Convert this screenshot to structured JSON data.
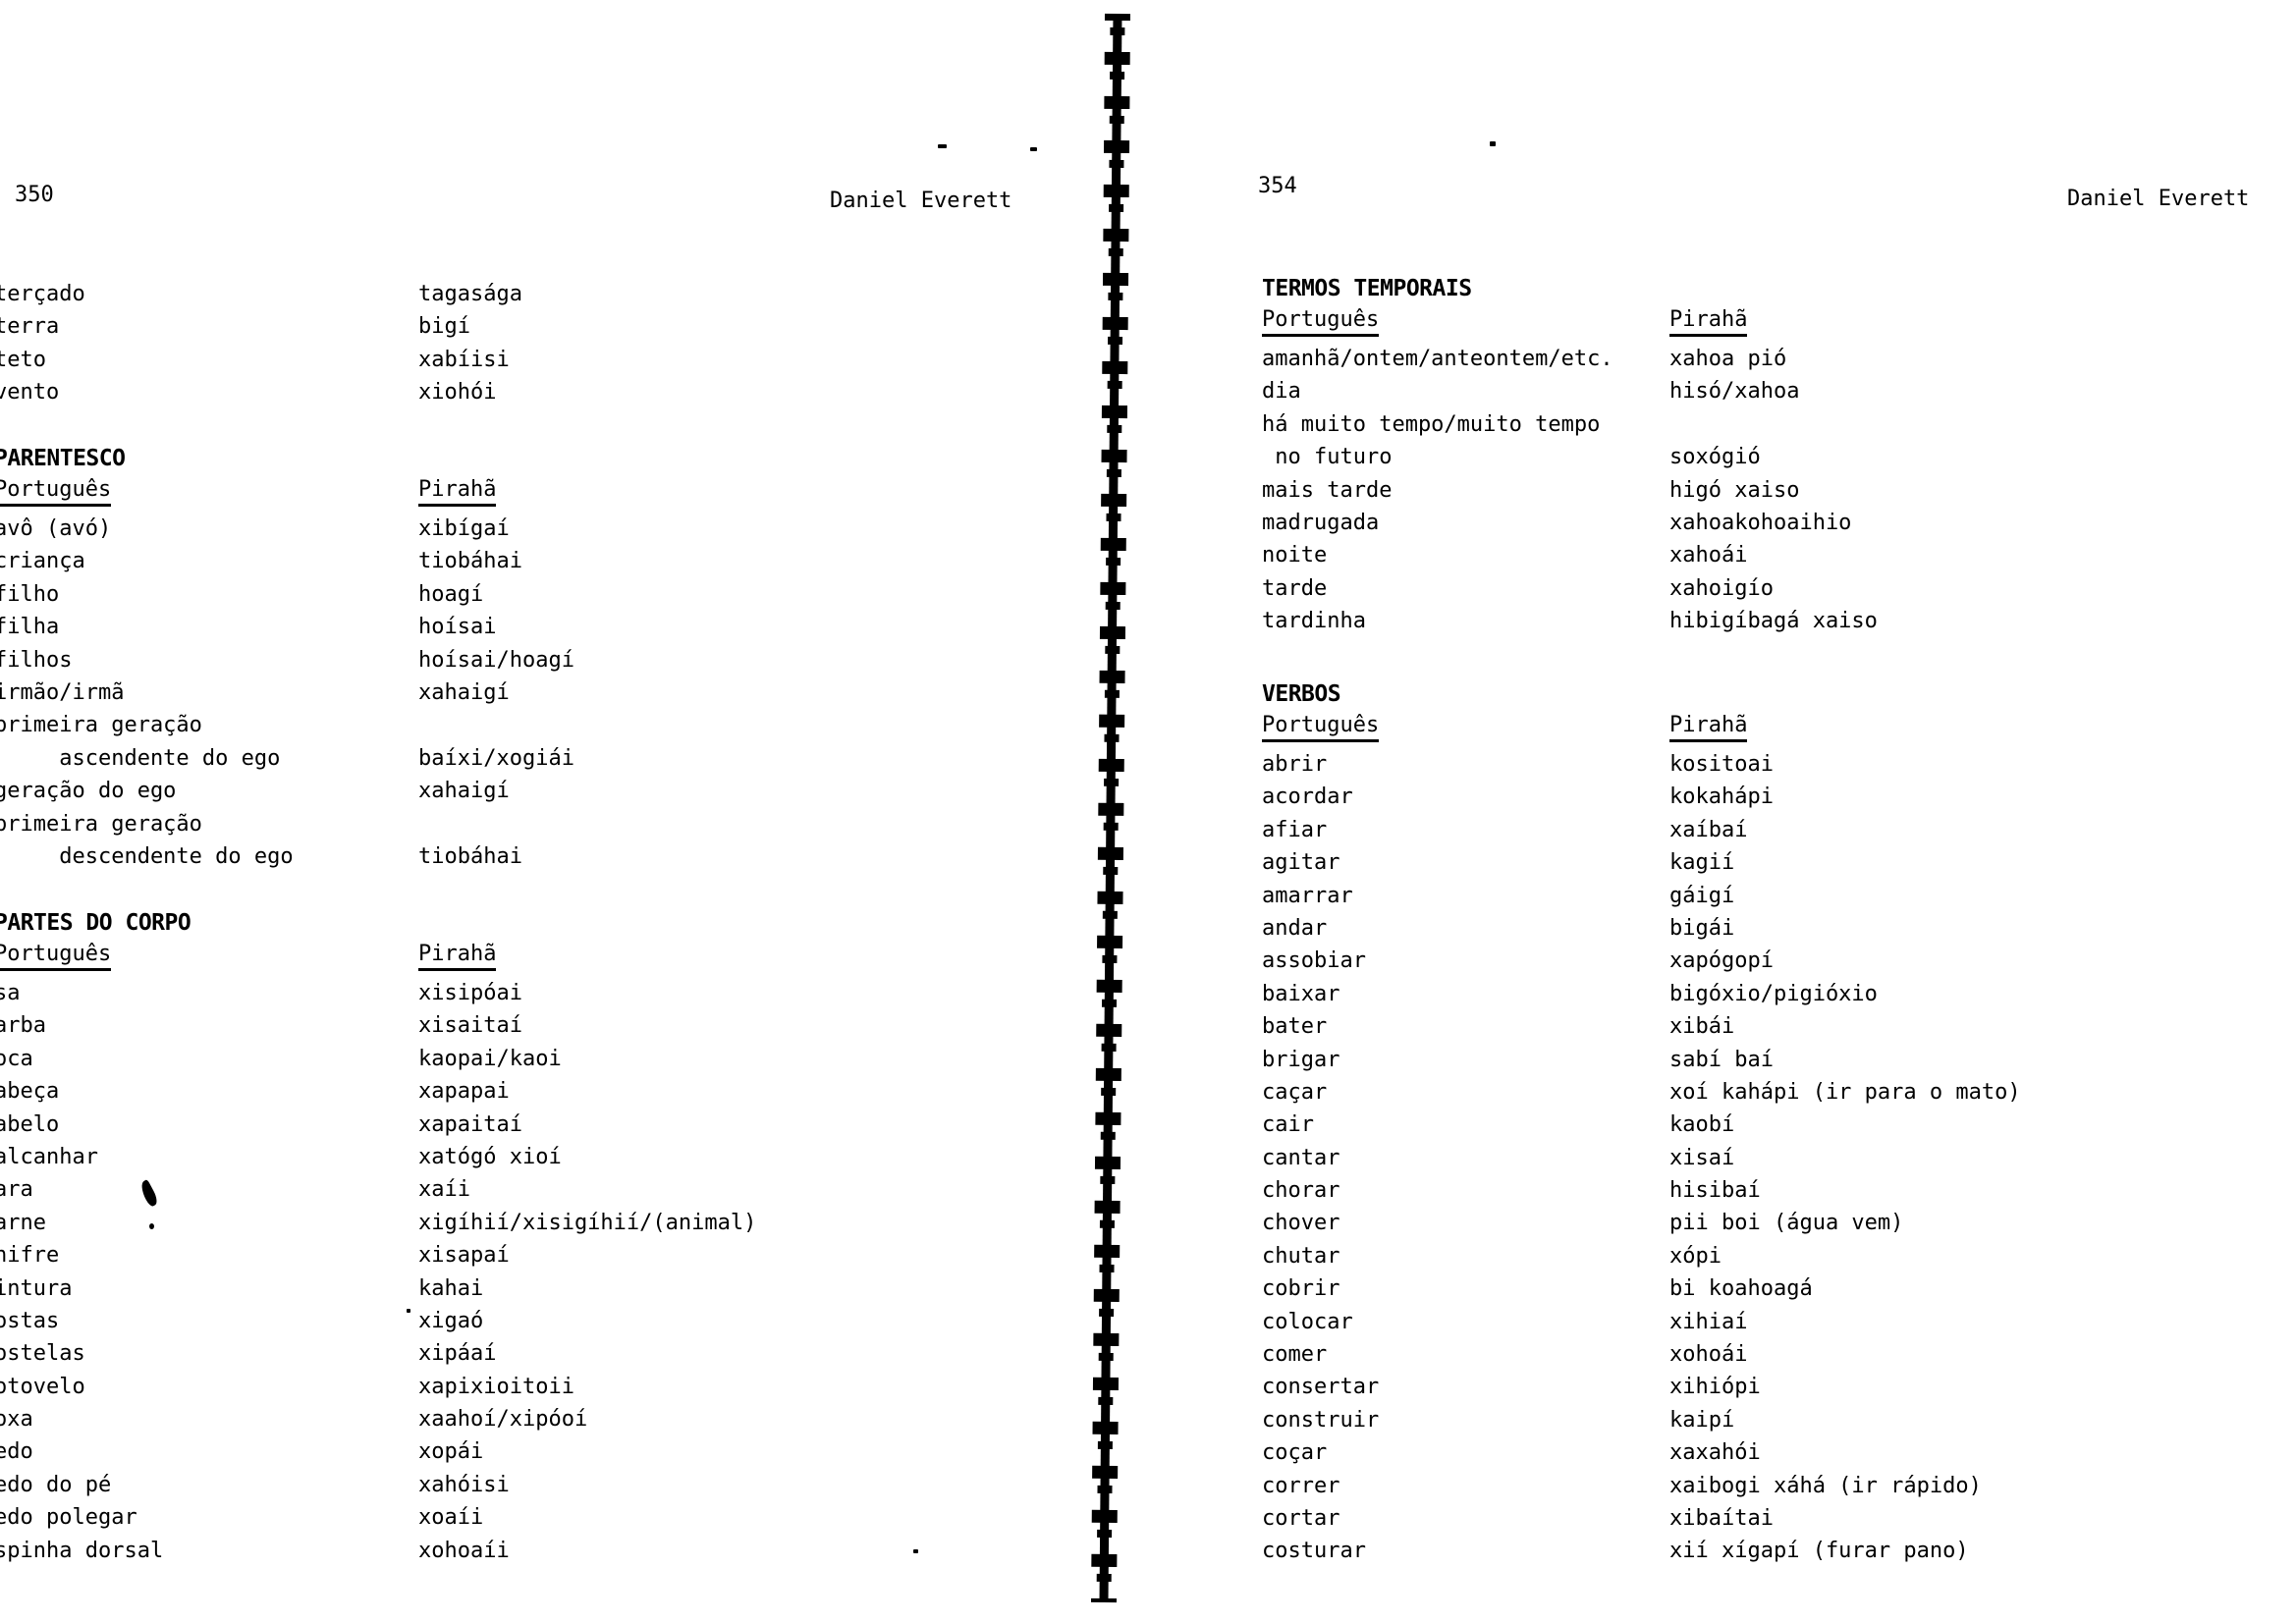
{
  "document": {
    "left_page": {
      "page_number": "350",
      "author": "Daniel Everett",
      "sections": [
        {
          "title": "",
          "headers": null,
          "rows": [
            [
              "terçado",
              "tagasága"
            ],
            [
              "terra",
              "bigí"
            ],
            [
              "teto",
              "xabíisi"
            ],
            [
              "vento",
              "xiohói"
            ]
          ]
        },
        {
          "title": "PARENTESCO",
          "headers": [
            "Português",
            "Pirahã"
          ],
          "rows": [
            [
              "avô (avó)",
              "xibígaí"
            ],
            [
              "criança",
              "tiobáhai"
            ],
            [
              "filho",
              "hoagí"
            ],
            [
              "filha",
              "hoísai"
            ],
            [
              "filhos",
              "hoísai/hoagí"
            ],
            [
              "irmão/irmã",
              "xahaigí"
            ],
            [
              "primeira geração",
              ""
            ],
            [
              "     ascendente do ego",
              "baíxi/xogiái"
            ],
            [
              "geração do ego",
              "xahaigí"
            ],
            [
              "primeira geração",
              ""
            ],
            [
              "     descendente do ego",
              "tiobáhai"
            ]
          ]
        },
        {
          "title": "PARTES DO CORPO",
          "headers": [
            "Português",
            "Pirahã"
          ],
          "rows": [
            [
              "sa",
              "xisipóai"
            ],
            [
              "arba",
              "xisaitaí"
            ],
            [
              "oca",
              "kaopai/kaoi"
            ],
            [
              "abeça",
              "xapapai"
            ],
            [
              "abelo",
              "xapaitaí"
            ],
            [
              "alcanhar",
              "xatógó xioí"
            ],
            [
              "ara",
              "xaíi"
            ],
            [
              "arne",
              "xigíhií/xisigíhií/(animal)"
            ],
            [
              "hifre",
              "xisapaí"
            ],
            [
              "intura",
              "kahai"
            ],
            [
              "ostas",
              "xigaó"
            ],
            [
              "ostelas",
              "xipáaí"
            ],
            [
              "otovelo",
              "xapixioitoii"
            ],
            [
              "oxa",
              "xaahoí/xipóoí"
            ],
            [
              "edo",
              "xopái"
            ],
            [
              "edo do pé",
              "xahóisi"
            ],
            [
              "edo polegar",
              "xoaíi"
            ],
            [
              "spinha dorsal",
              "xohoaíi"
            ]
          ]
        }
      ]
    },
    "right_page": {
      "page_number": "354",
      "author": "Daniel Everett",
      "sections": [
        {
          "title": "TERMOS TEMPORAIS",
          "headers": [
            "Português",
            "Pirahã"
          ],
          "rows": [
            [
              "amanhã/ontem/anteontem/etc.",
              "xahoa pió"
            ],
            [
              "dia",
              "hisó/xahoa"
            ],
            [
              "há muito tempo/muito tempo",
              ""
            ],
            [
              " no futuro",
              "soxógió"
            ],
            [
              "mais tarde",
              "higó xaiso"
            ],
            [
              "madrugada",
              "xahoakohoaihio"
            ],
            [
              "noite",
              "xahoái"
            ],
            [
              "tarde",
              "xahoigío"
            ],
            [
              "tardinha",
              "hibigíbagá xaiso"
            ]
          ]
        },
        {
          "title": "VERBOS",
          "headers": [
            "Português",
            "Pirahã"
          ],
          "rows": [
            [
              "abrir",
              "kositoai"
            ],
            [
              "acordar",
              "kokahápi"
            ],
            [
              "afiar",
              "xaíbaí"
            ],
            [
              "agitar",
              "kagií"
            ],
            [
              "amarrar",
              "gáigí"
            ],
            [
              "andar",
              "bigái"
            ],
            [
              "assobiar",
              "xapógopí"
            ],
            [
              "baixar",
              "bigóxio/pigióxio"
            ],
            [
              "bater",
              "xibái"
            ],
            [
              "brigar",
              "sabí baí"
            ],
            [
              "caçar",
              "xoí kahápi (ir para o mato)"
            ],
            [
              "cair",
              "kaobí"
            ],
            [
              "cantar",
              "xisaí"
            ],
            [
              "chorar",
              "hisibaí"
            ],
            [
              "chover",
              "pii boi (água vem)"
            ],
            [
              "chutar",
              "xópi"
            ],
            [
              "cobrir",
              "bi koahoagá"
            ],
            [
              "colocar",
              "xihiaí"
            ],
            [
              "comer",
              "xohoái"
            ],
            [
              "consertar",
              "xihiópi"
            ],
            [
              "construir",
              "kaipí"
            ],
            [
              "coçar",
              "xaxahói"
            ],
            [
              "correr",
              "xaibogi xáhá (ir rápido)"
            ],
            [
              "cortar",
              "xibaítai"
            ],
            [
              "costurar",
              "xií xígapí (furar pano)"
            ]
          ]
        }
      ]
    }
  }
}
